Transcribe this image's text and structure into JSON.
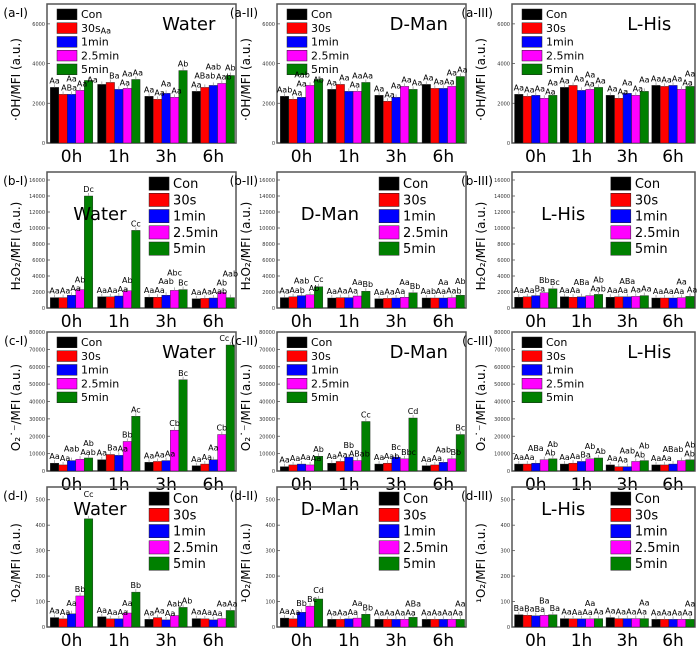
{
  "series_colors": {
    "Con": "#000000",
    "30s": "#ff0000",
    "1min": "#0000ff",
    "2.5min": "#ff00ff",
    "5min": "#008000"
  },
  "chart_data": [
    {
      "id": "(a-I)",
      "type": "bar",
      "title": "Water",
      "ylabel": "·OH/MFI (a.u.)",
      "ylim": [
        0,
        7000
      ],
      "yticks": [
        "0",
        "2000",
        "4000",
        "6000"
      ],
      "legend": "top-left",
      "categories": [
        "0h",
        "1h",
        "3h",
        "6h"
      ],
      "series": [
        {
          "name": "Con",
          "values": [
            2800,
            2950,
            2350,
            2600
          ]
        },
        {
          "name": "30s",
          "values": [
            2450,
            3050,
            2200,
            2800
          ]
        },
        {
          "name": "1min",
          "values": [
            2450,
            2700,
            2500,
            2900
          ]
        },
        {
          "name": "2.5min",
          "values": [
            2650,
            2750,
            2300,
            3000
          ]
        },
        {
          "name": "5min",
          "values": [
            3150,
            3200,
            3650,
            3400
          ]
        }
      ],
      "annotations": [
        [
          "Aa",
          "ABa",
          "Aa",
          "Aa",
          "Aa"
        ],
        [
          "Aa",
          "Ba",
          "Aa",
          "Aa",
          "Aa"
        ],
        [
          "Aa",
          "Aa",
          "Aa",
          "Aa",
          "Ab"
        ],
        [
          "Aa",
          "ABab",
          "Aab",
          "Aab",
          "Ab"
        ]
      ]
    },
    {
      "id": "(a-II)",
      "type": "bar",
      "title": "D-Man",
      "ylabel": "·OH/MFI (a.u.)",
      "ylim": [
        0,
        7000
      ],
      "yticks": [
        "0",
        "2000",
        "4000",
        "6000"
      ],
      "legend": "top-left",
      "categories": [
        "0h",
        "1h",
        "3h",
        "6h"
      ],
      "series": [
        {
          "name": "Con",
          "values": [
            2350,
            2700,
            2400,
            2950
          ]
        },
        {
          "name": "30s",
          "values": [
            2200,
            2950,
            2100,
            2750
          ]
        },
        {
          "name": "1min",
          "values": [
            2300,
            2600,
            2300,
            2750
          ]
        },
        {
          "name": "2.5min",
          "values": [
            2900,
            2600,
            2850,
            2850
          ]
        },
        {
          "name": "5min",
          "values": [
            3200,
            3050,
            2700,
            3350
          ]
        }
      ],
      "annotations": [
        [
          "Aab",
          "Aa",
          "Aa",
          "Aab",
          "Ab"
        ],
        [
          "Aa",
          "Aa",
          "Aa",
          "Aa",
          "Aa"
        ],
        [
          "Aa",
          "Aa",
          "Aa",
          "Aa",
          "Aa"
        ],
        [
          "Aa",
          "Aa",
          "Aa",
          "Aa",
          "Aa"
        ]
      ]
    },
    {
      "id": "(a-III)",
      "type": "bar",
      "title": "L-His",
      "ylabel": "·OH/MFI (a.u.)",
      "ylim": [
        0,
        7000
      ],
      "yticks": [
        "0",
        "2000",
        "4000",
        "6000"
      ],
      "legend": "top-left",
      "categories": [
        "0h",
        "1h",
        "3h",
        "6h"
      ],
      "series": [
        {
          "name": "Con",
          "values": [
            2450,
            2800,
            2400,
            2900
          ]
        },
        {
          "name": "30s",
          "values": [
            2350,
            2900,
            2250,
            2850
          ]
        },
        {
          "name": "1min",
          "values": [
            2400,
            2650,
            2500,
            2900
          ]
        },
        {
          "name": "2.5min",
          "values": [
            2250,
            2700,
            2400,
            2700
          ]
        },
        {
          "name": "5min",
          "values": [
            2400,
            2800,
            2600,
            2850
          ]
        }
      ],
      "annotations": [
        [
          "Aa",
          "Aa",
          "Aa",
          "Aa",
          "Aa"
        ],
        [
          "Aa",
          "Aa",
          "Aa",
          "Aa",
          "Aa"
        ],
        [
          "Aa",
          "Aa",
          "Aa",
          "Aa",
          "Aa"
        ],
        [
          "Aa",
          "Aa",
          "Aa",
          "Aa",
          "Aa"
        ]
      ]
    },
    {
      "id": "(b-I)",
      "type": "bar",
      "title": "Water",
      "ylabel": "H₂O₂/MFI (a.u.)",
      "ylim": [
        0,
        17000
      ],
      "yticks": [
        "0",
        "2000",
        "4000",
        "6000",
        "8000",
        "10000",
        "12000",
        "14000",
        "16000"
      ],
      "legend": "top-right",
      "categories": [
        "0h",
        "1h",
        "3h",
        "6h"
      ],
      "series": [
        {
          "name": "Con",
          "values": [
            1300,
            1400,
            1350,
            1150
          ]
        },
        {
          "name": "30s",
          "values": [
            1300,
            1400,
            1350,
            1200
          ]
        },
        {
          "name": "1min",
          "values": [
            1600,
            1500,
            1600,
            1250
          ]
        },
        {
          "name": "2.5min",
          "values": [
            2300,
            2150,
            2200,
            1950
          ]
        },
        {
          "name": "5min",
          "values": [
            14000,
            9700,
            2300,
            1300
          ]
        }
      ],
      "annotations": [
        [
          "Aa",
          "Aa",
          "Aa",
          "Ab",
          "Dc"
        ],
        [
          "Aa",
          "Aa",
          "Aa",
          "Ab",
          "Cc"
        ],
        [
          "Aa",
          "Aa",
          "Aab",
          "Abc",
          "Bc"
        ],
        [
          "Aa",
          "Aa",
          "Aab",
          "Ab",
          "Aab"
        ]
      ]
    },
    {
      "id": "(b-II)",
      "type": "bar",
      "title": "D-Man",
      "ylabel": "H₂O₂/MFI (a.u.)",
      "ylim": [
        0,
        17000
      ],
      "yticks": [
        "0",
        "2000",
        "4000",
        "6000",
        "8000",
        "10000",
        "12000",
        "14000",
        "16000"
      ],
      "legend": "top-right",
      "categories": [
        "0h",
        "1h",
        "3h",
        "6h"
      ],
      "series": [
        {
          "name": "Con",
          "values": [
            1300,
            1250,
            1150,
            1250
          ]
        },
        {
          "name": "30s",
          "values": [
            1400,
            1300,
            1200,
            1250
          ]
        },
        {
          "name": "1min",
          "values": [
            1550,
            1300,
            1250,
            1250
          ]
        },
        {
          "name": "2.5min",
          "values": [
            1650,
            1500,
            1350,
            1300
          ]
        },
        {
          "name": "5min",
          "values": [
            2650,
            2100,
            1900,
            1600
          ]
        }
      ],
      "annotations": [
        [
          "Aa",
          "Aab",
          "Aab",
          "Ab",
          "Cc"
        ],
        [
          "Aa",
          "Aa",
          "Aa",
          "Aa",
          "Bb"
        ],
        [
          "Aa",
          "Aa",
          "Aa",
          "Aa",
          "Bb"
        ],
        [
          "Aab",
          "Aa",
          "Aa",
          "Aab",
          "Ab"
        ]
      ]
    },
    {
      "id": "(b-III)",
      "type": "bar",
      "title": "L-His",
      "ylabel": "H₂O₂/MFI (a.u.)",
      "ylim": [
        0,
        17000
      ],
      "yticks": [
        "0",
        "2000",
        "4000",
        "6000",
        "8000",
        "10000",
        "12000",
        "14000",
        "16000"
      ],
      "legend": "top-right",
      "categories": [
        "0h",
        "1h",
        "3h",
        "6h"
      ],
      "series": [
        {
          "name": "Con",
          "values": [
            1350,
            1400,
            1350,
            1250
          ]
        },
        {
          "name": "30s",
          "values": [
            1400,
            1350,
            1400,
            1250
          ]
        },
        {
          "name": "1min",
          "values": [
            1550,
            1400,
            1400,
            1250
          ]
        },
        {
          "name": "2.5min",
          "values": [
            1900,
            1550,
            1450,
            1300
          ]
        },
        {
          "name": "5min",
          "values": [
            2400,
            1700,
            1550,
            1450
          ]
        }
      ],
      "annotations": [
        [
          "Aa",
          "Aa",
          "Ba",
          "Bb",
          "Bc"
        ],
        [
          "Aa",
          "Aa",
          "ABa",
          "Aab",
          "Ab"
        ],
        [
          "Aa",
          "Aa",
          "ABa",
          "Aa",
          "Aa"
        ],
        [
          "Aa",
          "Aa",
          "Aa",
          "Aa",
          "Aa"
        ]
      ]
    },
    {
      "id": "(c-I)",
      "type": "bar",
      "title": "Water",
      "ylabel": "O₂˙⁻/MFI (a.u.)",
      "ylim": [
        0,
        80000
      ],
      "yticks": [
        "0",
        "10000",
        "20000",
        "30000",
        "40000",
        "50000",
        "60000",
        "70000",
        "80000"
      ],
      "legend": "top-left",
      "categories": [
        "0h",
        "1h",
        "3h",
        "6h"
      ],
      "series": [
        {
          "name": "Con",
          "values": [
            4500,
            6500,
            5000,
            3000
          ]
        },
        {
          "name": "30s",
          "values": [
            3500,
            9500,
            5500,
            4000
          ]
        },
        {
          "name": "1min",
          "values": [
            6000,
            9000,
            6000,
            6500
          ]
        },
        {
          "name": "2.5min",
          "values": [
            6800,
            17000,
            23500,
            21000
          ]
        },
        {
          "name": "5min",
          "values": [
            7500,
            31500,
            52500,
            72500
          ]
        }
      ],
      "annotations": [
        [
          "Aa",
          "Aa",
          "Aab",
          "Aab",
          "Ab"
        ],
        [
          "Aa",
          "Ba",
          "Aa",
          "Bb",
          "Ac"
        ],
        [
          "Aa",
          "Aa",
          "Aa",
          "Cb",
          "Bc"
        ],
        [
          "Aa",
          "Aa",
          "Aa",
          "Cb",
          "Cc"
        ]
      ]
    },
    {
      "id": "(c-II)",
      "type": "bar",
      "title": "D-Man",
      "ylabel": "O₂˙⁻/MFI (a.u.)",
      "ylim": [
        0,
        80000
      ],
      "yticks": [
        "0",
        "10000",
        "20000",
        "30000",
        "40000",
        "50000",
        "60000",
        "70000",
        "80000"
      ],
      "legend": "top-left",
      "categories": [
        "0h",
        "1h",
        "3h",
        "6h"
      ],
      "series": [
        {
          "name": "Con",
          "values": [
            2500,
            4500,
            4000,
            3000
          ]
        },
        {
          "name": "30s",
          "values": [
            3500,
            5500,
            4500,
            3500
          ]
        },
        {
          "name": "1min",
          "values": [
            4000,
            8000,
            8000,
            5000
          ]
        },
        {
          "name": "2.5min",
          "values": [
            3500,
            6000,
            7000,
            7000
          ]
        },
        {
          "name": "5min",
          "values": [
            8500,
            28500,
            30500,
            21000
          ]
        }
      ],
      "annotations": [
        [
          "Aa",
          "Aa",
          "Aa",
          "Aa",
          "Ab"
        ],
        [
          "Aa",
          "Aa",
          "Bb",
          "ABab",
          "Cc"
        ],
        [
          "Aa",
          "Aab",
          "Bc",
          "Bbc",
          "Cd"
        ],
        [
          "Aa",
          "Aa",
          "Aab",
          "Bb",
          "Bc"
        ]
      ]
    },
    {
      "id": "(c-III)",
      "type": "bar",
      "title": "L-His",
      "ylabel": "O₂˙⁻/MFI (a.u.)",
      "ylim": [
        0,
        80000
      ],
      "yticks": [
        "0",
        "10000",
        "20000",
        "30000",
        "40000",
        "50000",
        "60000",
        "70000",
        "80000"
      ],
      "legend": "top-left",
      "categories": [
        "0h",
        "1h",
        "3h",
        "6h"
      ],
      "series": [
        {
          "name": "Con",
          "values": [
            4000,
            4000,
            3500,
            3500
          ]
        },
        {
          "name": "30s",
          "values": [
            4000,
            4500,
            2500,
            3500
          ]
        },
        {
          "name": "1min",
          "values": [
            4500,
            5500,
            2500,
            4000
          ]
        },
        {
          "name": "2.5min",
          "values": [
            6500,
            7000,
            5500,
            6000
          ]
        },
        {
          "name": "5min",
          "values": [
            7000,
            7500,
            6000,
            6500
          ]
        }
      ],
      "annotations": [
        [
          "Aa",
          "Aa",
          "ABa",
          "Ab",
          "Ab"
        ],
        [
          "Aa",
          "Aa",
          "Ba",
          "Ab",
          "Ab"
        ],
        [
          "Aa",
          "Aa",
          "Aab",
          "Ab",
          "Ab"
        ],
        [
          "Aa",
          "Aa",
          "ABab",
          "Ab",
          "Ab"
        ]
      ]
    },
    {
      "id": "(d-I)",
      "type": "bar",
      "title": "Water",
      "ylabel": "¹O₂/MFI (a.u.)",
      "ylim": [
        0,
        550
      ],
      "yticks": [
        "0",
        "100",
        "200",
        "300",
        "400",
        "500"
      ],
      "legend": "top-right",
      "categories": [
        "0h",
        "1h",
        "3h",
        "6h"
      ],
      "series": [
        {
          "name": "Con",
          "values": [
            37,
            40,
            30,
            33
          ]
        },
        {
          "name": "30s",
          "values": [
            32,
            32,
            37,
            32
          ]
        },
        {
          "name": "1min",
          "values": [
            52,
            32,
            28,
            28
          ]
        },
        {
          "name": "2.5min",
          "values": [
            122,
            55,
            45,
            33
          ]
        },
        {
          "name": "5min",
          "values": [
            425,
            137,
            77,
            65
          ]
        }
      ],
      "annotations": [
        [
          "Aa",
          "Aa",
          "Aa",
          "Bb",
          "Cc"
        ],
        [
          "Aa",
          "Aa",
          "Aa",
          "Aa",
          "Bb"
        ],
        [
          "Aa",
          "Aa",
          "Aa",
          "Aab",
          "Ab"
        ],
        [
          "Aa",
          "Aa",
          "Aa",
          "Aa",
          "Aa"
        ]
      ]
    },
    {
      "id": "(d-II)",
      "type": "bar",
      "title": "D-Man",
      "ylabel": "¹O₂/MFI (a.u.)",
      "ylim": [
        0,
        550
      ],
      "yticks": [
        "0",
        "100",
        "200",
        "300",
        "400",
        "500"
      ],
      "legend": "top-right",
      "categories": [
        "0h",
        "1h",
        "3h",
        "6h"
      ],
      "series": [
        {
          "name": "Con",
          "values": [
            35,
            30,
            30,
            30
          ]
        },
        {
          "name": "30s",
          "values": [
            32,
            30,
            30,
            30
          ]
        },
        {
          "name": "1min",
          "values": [
            58,
            32,
            30,
            30
          ]
        },
        {
          "name": "2.5min",
          "values": [
            82,
            35,
            30,
            30
          ]
        },
        {
          "name": "5min",
          "values": [
            110,
            50,
            38,
            30
          ]
        }
      ],
      "annotations": [
        [
          "Aa",
          "Aa",
          "Bb",
          "Bc",
          "Cd"
        ],
        [
          "Aa",
          "Aa",
          "Aa",
          "Aa",
          "Bb"
        ],
        [
          "Aa",
          "Aa",
          "Aa",
          "Aa",
          "ABa"
        ],
        [
          "Aa",
          "Aa",
          "Aa",
          "Aa",
          "Aa"
        ]
      ]
    },
    {
      "id": "(d-III)",
      "type": "bar",
      "title": "L-His",
      "ylabel": "¹O₂/MFI (a.u.)",
      "ylim": [
        0,
        550
      ],
      "yticks": [
        "0",
        "100",
        "200",
        "300",
        "400",
        "500"
      ],
      "legend": "top-right",
      "categories": [
        "0h",
        "1h",
        "3h",
        "6h"
      ],
      "series": [
        {
          "name": "Con",
          "values": [
            48,
            33,
            37,
            30
          ]
        },
        {
          "name": "30s",
          "values": [
            46,
            32,
            33,
            30
          ]
        },
        {
          "name": "1min",
          "values": [
            44,
            32,
            33,
            30
          ]
        },
        {
          "name": "2.5min",
          "values": [
            46,
            32,
            33,
            30
          ]
        },
        {
          "name": "5min",
          "values": [
            48,
            33,
            33,
            30
          ]
        }
      ],
      "annotations": [
        [
          "Ba",
          "Ba",
          "Ba",
          "Ba",
          "Ba"
        ],
        [
          "Aa",
          "Aa",
          "Aa",
          "Aa",
          "Aa"
        ],
        [
          "Aa",
          "Aa",
          "Aa",
          "Aa",
          "Aa"
        ],
        [
          "Aa",
          "Aa",
          "Aa",
          "Aa",
          "Aa"
        ]
      ]
    }
  ]
}
